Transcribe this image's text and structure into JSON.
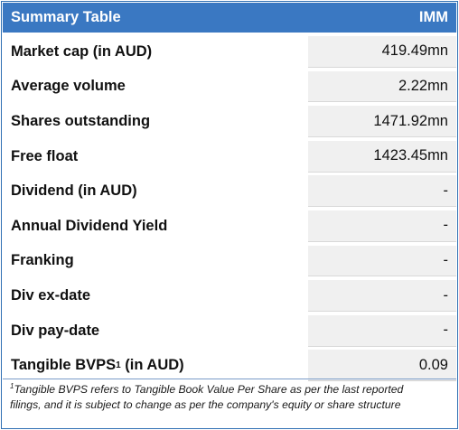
{
  "header": {
    "title": "Summary Table",
    "ticker": "IMM"
  },
  "rows": [
    {
      "label": "Market cap (in AUD)",
      "value": "419.49mn"
    },
    {
      "label": "Average volume",
      "value": "2.22mn"
    },
    {
      "label": "Shares outstanding",
      "value": "1471.92mn"
    },
    {
      "label": "Free float",
      "value": "1423.45mn"
    },
    {
      "label": "Dividend (in AUD)",
      "value": "-"
    },
    {
      "label": "Annual Dividend Yield",
      "value": "-"
    },
    {
      "label": "Franking",
      "value": "-"
    },
    {
      "label": "Div ex-date",
      "value": "-"
    },
    {
      "label": "Div pay-date",
      "value": "-"
    }
  ],
  "last_row": {
    "label_main": "Tangible BVPS",
    "label_sup": "1",
    "label_tail": " (in AUD)",
    "value": "0.09"
  },
  "footnote": {
    "marker": "1",
    "line1": "Tangible BVPS refers to Tangible Book Value Per Share as per the last reported",
    "line2": "filings, and it is subject to change as per the company's equity or share structure"
  }
}
